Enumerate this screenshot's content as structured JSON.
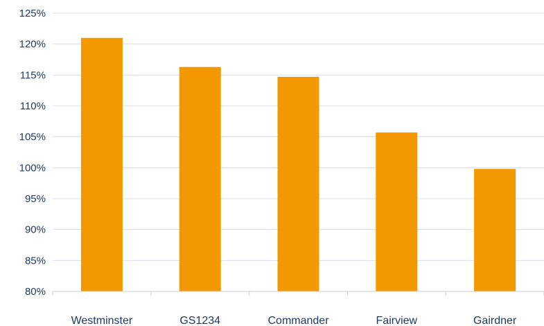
{
  "chart_data": {
    "type": "bar",
    "categories": [
      "Westminster",
      "GS1234",
      "Commander",
      "Fairview",
      "Gairdner"
    ],
    "values": [
      121,
      116.3,
      114.7,
      105.7,
      99.8
    ],
    "value_format": "percent",
    "ylim": [
      80,
      125
    ],
    "yticks": [
      80,
      85,
      90,
      95,
      100,
      105,
      110,
      115,
      120,
      125
    ],
    "ytick_labels": [
      "80%",
      "85%",
      "90%",
      "95%",
      "100%",
      "105%",
      "110%",
      "115%",
      "120%",
      "125%"
    ],
    "grid": true,
    "legend": "none",
    "bar_color": "#F39800"
  }
}
